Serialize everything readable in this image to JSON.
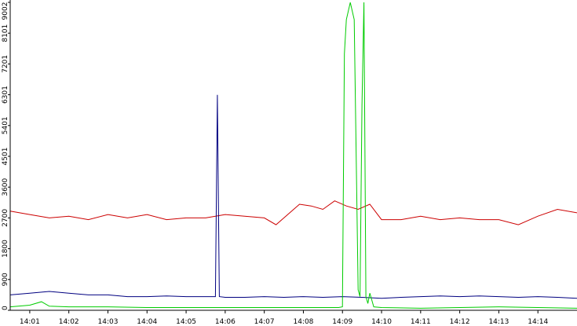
{
  "chart_data": {
    "type": "line",
    "x_ticks": [
      "14:01",
      "14:02",
      "14:03",
      "14:04",
      "14:05",
      "14:06",
      "14:07",
      "14:08",
      "14:09",
      "14:10",
      "14:11",
      "14:12",
      "14:13",
      "14:14"
    ],
    "y_ticks": [
      "0",
      "900",
      "1800",
      "2700",
      "3600",
      "4501",
      "5401",
      "6301",
      "7201",
      "8101",
      "9002"
    ],
    "ylim": [
      0,
      9002
    ],
    "xlim_minutes": [
      0.5,
      15.0
    ],
    "grid": false,
    "legend": "none",
    "series": [
      {
        "color": "#cc0000",
        "x": [
          0.5,
          1.0,
          1.5,
          2.0,
          2.5,
          3.0,
          3.5,
          4.0,
          4.5,
          5.0,
          5.5,
          6.0,
          6.5,
          7.0,
          7.3,
          7.6,
          7.9,
          8.2,
          8.5,
          8.8,
          9.1,
          9.4,
          9.7,
          10.0,
          10.5,
          11.0,
          11.5,
          12.0,
          12.5,
          13.0,
          13.5,
          14.0,
          14.5,
          15.0
        ],
        "values": [
          2900,
          2800,
          2700,
          2750,
          2650,
          2800,
          2700,
          2800,
          2650,
          2700,
          2700,
          2800,
          2750,
          2700,
          2500,
          2800,
          3100,
          3050,
          2950,
          3200,
          3050,
          2950,
          3100,
          2650,
          2650,
          2750,
          2650,
          2700,
          2650,
          2650,
          2500,
          2750,
          2950,
          2850
        ]
      },
      {
        "color": "#000080",
        "x": [
          0.5,
          1.0,
          1.5,
          2.0,
          2.5,
          3.0,
          3.5,
          4.0,
          4.5,
          5.0,
          5.5,
          5.75,
          5.8,
          5.85,
          6.0,
          6.5,
          7.0,
          7.5,
          8.0,
          8.5,
          9.0,
          9.5,
          10.0,
          10.5,
          11.0,
          11.5,
          12.0,
          12.5,
          13.0,
          13.5,
          14.0,
          14.5,
          15.0
        ],
        "values": [
          450,
          500,
          550,
          500,
          450,
          450,
          400,
          400,
          420,
          400,
          400,
          400,
          6300,
          400,
          380,
          380,
          400,
          380,
          400,
          380,
          400,
          380,
          350,
          380,
          400,
          420,
          400,
          420,
          400,
          380,
          400,
          380,
          350
        ]
      },
      {
        "color": "#00cc00",
        "x": [
          0.5,
          1.0,
          1.3,
          1.5,
          2.0,
          3.0,
          4.0,
          5.0,
          6.0,
          7.0,
          8.0,
          8.9,
          9.0,
          9.05,
          9.1,
          9.2,
          9.3,
          9.4,
          9.45,
          9.5,
          9.55,
          9.6,
          9.65,
          9.7,
          9.8,
          10.0,
          11.0,
          12.0,
          13.0,
          14.0,
          15.0
        ],
        "values": [
          100,
          150,
          250,
          120,
          100,
          100,
          80,
          80,
          80,
          80,
          80,
          80,
          100,
          7500,
          8500,
          9000,
          8500,
          600,
          400,
          6000,
          9002,
          400,
          200,
          500,
          100,
          80,
          60,
          80,
          100,
          80,
          60
        ]
      }
    ]
  }
}
